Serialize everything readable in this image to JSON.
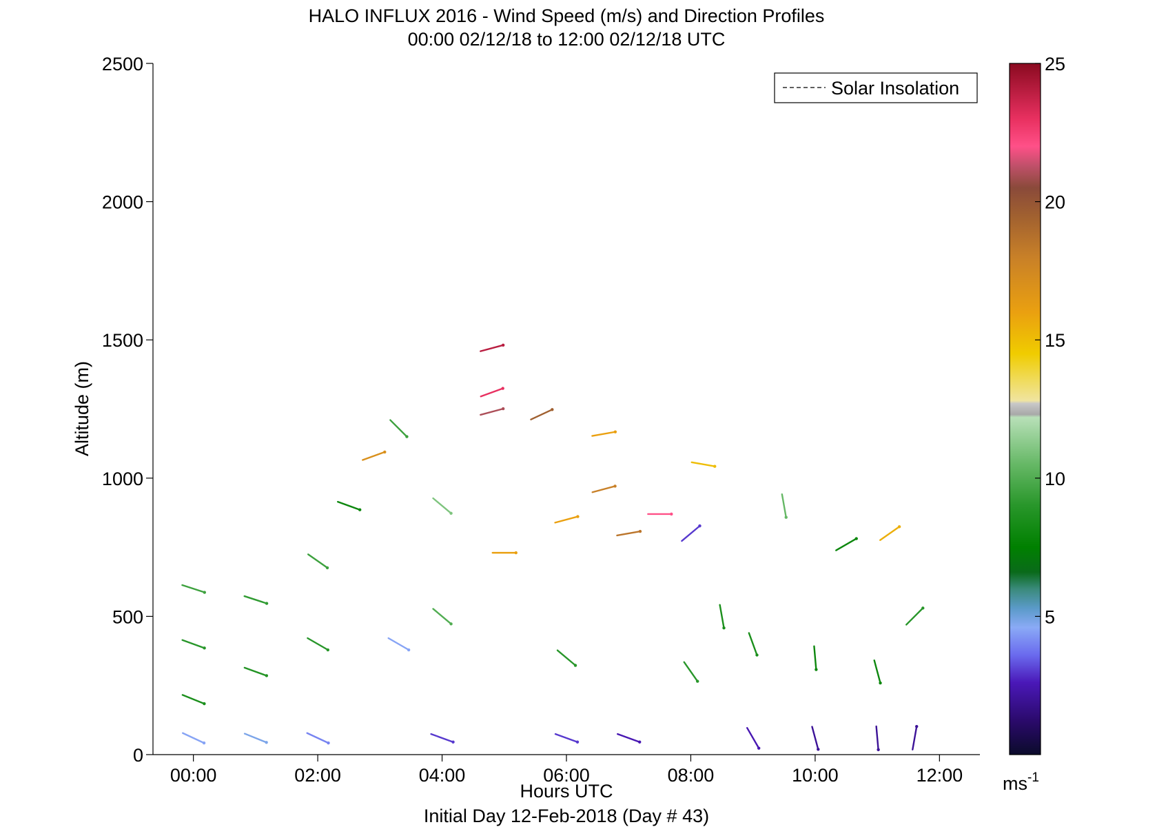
{
  "chart_data": {
    "type": "wind-barb-profile",
    "title": "HALO INFLUX 2016 - Wind Speed (m/s) and Direction Profiles",
    "subtitle": "00:00 02/12/18 to 12:00 02/12/18  UTC",
    "xlabel": "Hours UTC",
    "xlabel2": "Initial Day 12-Feb-2018 (Day # 43)",
    "ylabel": "Altitude (m)",
    "xlim": [
      -0.65,
      12.65
    ],
    "ylim": [
      0,
      2500
    ],
    "x_ticks": [
      0,
      2,
      4,
      6,
      8,
      10,
      12
    ],
    "x_tick_labels": [
      "00:00",
      "02:00",
      "04:00",
      "06:00",
      "08:00",
      "10:00",
      "12:00"
    ],
    "y_ticks": [
      0,
      500,
      1000,
      1500,
      2000,
      2500
    ],
    "y_tick_labels": [
      "0",
      "500",
      "1000",
      "1500",
      "2000",
      "2500"
    ],
    "legend": {
      "entries": [
        "Solar Insolation"
      ],
      "position": "top-right",
      "line_style": "dashed",
      "color": "#000000"
    },
    "colorbar": {
      "label_main": "ms",
      "label_sup": "-1",
      "range": [
        0,
        25
      ],
      "ticks": [
        5,
        10,
        15,
        20,
        25
      ],
      "tick_labels": [
        "5",
        "10",
        "15",
        "20",
        "25"
      ],
      "stops": [
        {
          "v": 0,
          "color": "#0b0b2b"
        },
        {
          "v": 1.2,
          "color": "#2a0a6a"
        },
        {
          "v": 2.6,
          "color": "#4a18b8"
        },
        {
          "v": 3.6,
          "color": "#6a6aee"
        },
        {
          "v": 4.6,
          "color": "#8aaaf6"
        },
        {
          "v": 5.3,
          "color": "#5a9ac8"
        },
        {
          "v": 6.0,
          "color": "#3a8a7a"
        },
        {
          "v": 6.6,
          "color": "#0a6a1a"
        },
        {
          "v": 7.5,
          "color": "#008000"
        },
        {
          "v": 9.0,
          "color": "#28962a"
        },
        {
          "v": 10.5,
          "color": "#66b866"
        },
        {
          "v": 12.2,
          "color": "#b8e0b8"
        },
        {
          "v": 12.3,
          "color": "#a8a8a8"
        },
        {
          "v": 12.7,
          "color": "#c8c8c8"
        },
        {
          "v": 12.8,
          "color": "#f0e4a0"
        },
        {
          "v": 13.5,
          "color": "#f0dc60"
        },
        {
          "v": 14.5,
          "color": "#f0cc00"
        },
        {
          "v": 16.0,
          "color": "#eaa010"
        },
        {
          "v": 18.0,
          "color": "#c88028"
        },
        {
          "v": 19.5,
          "color": "#a06030"
        },
        {
          "v": 20.5,
          "color": "#8a4a3a"
        },
        {
          "v": 21.3,
          "color": "#c0506a"
        },
        {
          "v": 22.0,
          "color": "#ff5088"
        },
        {
          "v": 23.0,
          "color": "#e83060"
        },
        {
          "v": 25.0,
          "color": "#8a0a20"
        }
      ]
    },
    "note": "Each sample: t = hours UTC, alt = metres, spd = m/s, dir = direction in degrees toward which the line points on screen (0 = right, 90 = up).",
    "wind_samples": [
      {
        "t": 0.0,
        "alt": 60,
        "spd": 4.5,
        "dir": -25
      },
      {
        "t": 0.0,
        "alt": 200,
        "spd": 8.5,
        "dir": -22
      },
      {
        "t": 0.0,
        "alt": 400,
        "spd": 9.0,
        "dir": -20
      },
      {
        "t": 0.0,
        "alt": 600,
        "spd": 9.5,
        "dir": -18
      },
      {
        "t": 1.0,
        "alt": 60,
        "spd": 4.8,
        "dir": -22
      },
      {
        "t": 1.0,
        "alt": 300,
        "spd": 8.8,
        "dir": -20
      },
      {
        "t": 1.0,
        "alt": 560,
        "spd": 9.2,
        "dir": -18
      },
      {
        "t": 2.0,
        "alt": 60,
        "spd": 4.0,
        "dir": -25
      },
      {
        "t": 2.0,
        "alt": 400,
        "spd": 9.0,
        "dir": -30
      },
      {
        "t": 2.0,
        "alt": 700,
        "spd": 9.5,
        "dir": -35
      },
      {
        "t": 2.5,
        "alt": 900,
        "spd": 8.0,
        "dir": -20
      },
      {
        "t": 2.9,
        "alt": 1080,
        "spd": 17.0,
        "dir": 20
      },
      {
        "t": 3.3,
        "alt": 400,
        "spd": 4.5,
        "dir": -30
      },
      {
        "t": 3.3,
        "alt": 1180,
        "spd": 9.5,
        "dir": -45
      },
      {
        "t": 4.0,
        "alt": 60,
        "spd": 3.0,
        "dir": -20
      },
      {
        "t": 4.0,
        "alt": 500,
        "spd": 10.0,
        "dir": -40
      },
      {
        "t": 4.0,
        "alt": 900,
        "spd": 11.0,
        "dir": -40
      },
      {
        "t": 4.8,
        "alt": 1470,
        "spd": 24.0,
        "dir": 15
      },
      {
        "t": 4.8,
        "alt": 1310,
        "spd": 23.0,
        "dir": 20
      },
      {
        "t": 4.8,
        "alt": 1240,
        "spd": 21.0,
        "dir": 15
      },
      {
        "t": 5.0,
        "alt": 730,
        "spd": 16.0,
        "dir": 0
      },
      {
        "t": 5.6,
        "alt": 1230,
        "spd": 19.5,
        "dir": 25
      },
      {
        "t": 6.0,
        "alt": 60,
        "spd": 3.0,
        "dir": -20
      },
      {
        "t": 6.0,
        "alt": 350,
        "spd": 9.0,
        "dir": -40
      },
      {
        "t": 6.0,
        "alt": 850,
        "spd": 16.0,
        "dir": 15
      },
      {
        "t": 6.6,
        "alt": 1160,
        "spd": 16.0,
        "dir": 10
      },
      {
        "t": 6.6,
        "alt": 960,
        "spd": 18.0,
        "dir": 15
      },
      {
        "t": 7.0,
        "alt": 60,
        "spd": 2.5,
        "dir": -20
      },
      {
        "t": 7.0,
        "alt": 800,
        "spd": 18.5,
        "dir": 10
      },
      {
        "t": 7.5,
        "alt": 870,
        "spd": 22.0,
        "dir": 0
      },
      {
        "t": 8.0,
        "alt": 300,
        "spd": 9.0,
        "dir": -55
      },
      {
        "t": 8.0,
        "alt": 800,
        "spd": 3.0,
        "dir": 40
      },
      {
        "t": 8.2,
        "alt": 1050,
        "spd": 15.0,
        "dir": -10
      },
      {
        "t": 8.5,
        "alt": 500,
        "spd": 8.5,
        "dir": -80
      },
      {
        "t": 9.0,
        "alt": 60,
        "spd": 2.5,
        "dir": -60
      },
      {
        "t": 9.0,
        "alt": 400,
        "spd": 8.5,
        "dir": -70
      },
      {
        "t": 9.5,
        "alt": 900,
        "spd": 10.5,
        "dir": -80
      },
      {
        "t": 10.0,
        "alt": 60,
        "spd": 2.0,
        "dir": -75
      },
      {
        "t": 10.0,
        "alt": 350,
        "spd": 8.0,
        "dir": -85
      },
      {
        "t": 10.5,
        "alt": 760,
        "spd": 8.0,
        "dir": 30
      },
      {
        "t": 11.0,
        "alt": 60,
        "spd": 2.0,
        "dir": -85
      },
      {
        "t": 11.0,
        "alt": 300,
        "spd": 8.0,
        "dir": -75
      },
      {
        "t": 11.2,
        "alt": 800,
        "spd": 15.5,
        "dir": 35
      },
      {
        "t": 11.6,
        "alt": 60,
        "spd": 2.0,
        "dir": 80
      },
      {
        "t": 11.6,
        "alt": 500,
        "spd": 9.0,
        "dir": 45
      }
    ]
  }
}
